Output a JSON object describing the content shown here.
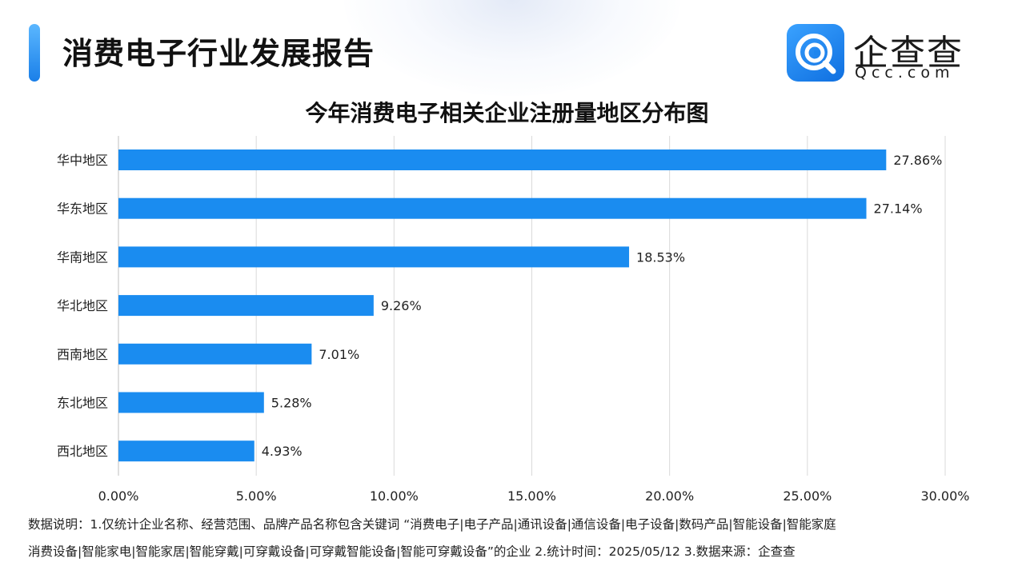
{
  "header": {
    "report_title": "消费电子行业发展报告",
    "logo_name": "企查查",
    "logo_domain": "Qcc.com"
  },
  "chart_data": {
    "type": "bar",
    "orientation": "horizontal",
    "title": "今年消费电子相关企业注册量地区分布图",
    "categories": [
      "华中地区",
      "华东地区",
      "华南地区",
      "华北地区",
      "西南地区",
      "东北地区",
      "西北地区"
    ],
    "values": [
      27.86,
      27.14,
      18.53,
      9.26,
      7.01,
      5.28,
      4.93
    ],
    "value_labels": [
      "27.86%",
      "27.14%",
      "18.53%",
      "9.26%",
      "7.01%",
      "5.28%",
      "4.93%"
    ],
    "xlim": [
      0,
      30
    ],
    "x_ticks": [
      "0.00%",
      "5.00%",
      "10.00%",
      "15.00%",
      "20.00%",
      "25.00%",
      "30.00%"
    ],
    "grid": true,
    "bar_color": "#1a8cf0"
  },
  "footnote": {
    "line1": "数据说明：1.仅统计企业名称、经营范围、品牌产品名称包含关键词 “消费电子|电子产品|通讯设备|通信设备|电子设备|数码产品|智能设备|智能家庭",
    "line2": "消费设备|智能家电|智能家居|智能穿戴|可穿戴设备|可穿戴智能设备|智能可穿戴设备”的企业   2.统计时间：2025/05/12   3.数据来源：企查查"
  },
  "icons": {
    "logo": "qcc-logo-icon"
  }
}
